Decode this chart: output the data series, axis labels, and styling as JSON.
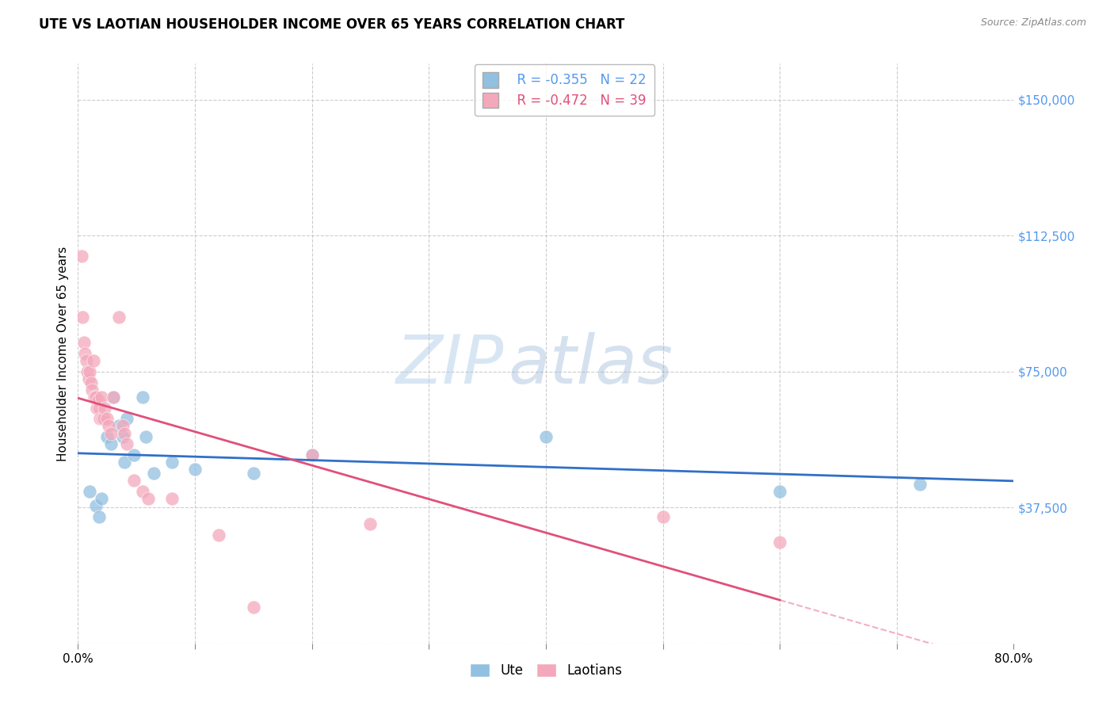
{
  "title": "UTE VS LAOTIAN HOUSEHOLDER INCOME OVER 65 YEARS CORRELATION CHART",
  "source": "Source: ZipAtlas.com",
  "ylabel": "Householder Income Over 65 years",
  "xlim": [
    0.0,
    0.8
  ],
  "ylim": [
    0,
    160000
  ],
  "yticks": [
    0,
    37500,
    75000,
    112500,
    150000
  ],
  "ytick_labels": [
    "",
    "$37,500",
    "$75,000",
    "$112,500",
    "$150,000"
  ],
  "xticks": [
    0.0,
    0.1,
    0.2,
    0.3,
    0.4,
    0.5,
    0.6,
    0.7,
    0.8
  ],
  "xtick_labels": [
    "0.0%",
    "",
    "",
    "",
    "",
    "",
    "",
    "",
    "80.0%"
  ],
  "legend_ute_r": "R = -0.355",
  "legend_ute_n": "N = 22",
  "legend_laotian_r": "R = -0.472",
  "legend_laotian_n": "N = 39",
  "ute_color": "#92c0e0",
  "laotian_color": "#f4a8bc",
  "ute_line_color": "#3070c8",
  "laotian_line_color": "#e0507a",
  "background_color": "#ffffff",
  "grid_color": "#cccccc",
  "watermark_zip": "ZIP",
  "watermark_atlas": "atlas",
  "ute_points": [
    [
      0.01,
      42000
    ],
    [
      0.015,
      38000
    ],
    [
      0.018,
      35000
    ],
    [
      0.02,
      40000
    ],
    [
      0.025,
      57000
    ],
    [
      0.028,
      55000
    ],
    [
      0.03,
      68000
    ],
    [
      0.035,
      60000
    ],
    [
      0.038,
      57000
    ],
    [
      0.04,
      50000
    ],
    [
      0.042,
      62000
    ],
    [
      0.048,
      52000
    ],
    [
      0.055,
      68000
    ],
    [
      0.058,
      57000
    ],
    [
      0.065,
      47000
    ],
    [
      0.08,
      50000
    ],
    [
      0.1,
      48000
    ],
    [
      0.15,
      47000
    ],
    [
      0.2,
      52000
    ],
    [
      0.4,
      57000
    ],
    [
      0.6,
      42000
    ],
    [
      0.72,
      44000
    ]
  ],
  "laotian_points": [
    [
      0.003,
      107000
    ],
    [
      0.004,
      90000
    ],
    [
      0.005,
      83000
    ],
    [
      0.006,
      80000
    ],
    [
      0.007,
      78000
    ],
    [
      0.008,
      75000
    ],
    [
      0.009,
      73000
    ],
    [
      0.01,
      75000
    ],
    [
      0.011,
      72000
    ],
    [
      0.012,
      70000
    ],
    [
      0.013,
      78000
    ],
    [
      0.014,
      68000
    ],
    [
      0.015,
      68000
    ],
    [
      0.016,
      65000
    ],
    [
      0.017,
      67000
    ],
    [
      0.018,
      65000
    ],
    [
      0.019,
      62000
    ],
    [
      0.02,
      68000
    ],
    [
      0.021,
      62000
    ],
    [
      0.022,
      62000
    ],
    [
      0.023,
      65000
    ],
    [
      0.025,
      62000
    ],
    [
      0.026,
      60000
    ],
    [
      0.028,
      58000
    ],
    [
      0.03,
      68000
    ],
    [
      0.035,
      90000
    ],
    [
      0.038,
      60000
    ],
    [
      0.04,
      58000
    ],
    [
      0.042,
      55000
    ],
    [
      0.048,
      45000
    ],
    [
      0.055,
      42000
    ],
    [
      0.06,
      40000
    ],
    [
      0.08,
      40000
    ],
    [
      0.12,
      30000
    ],
    [
      0.15,
      10000
    ],
    [
      0.2,
      52000
    ],
    [
      0.25,
      33000
    ],
    [
      0.5,
      35000
    ],
    [
      0.6,
      28000
    ]
  ]
}
